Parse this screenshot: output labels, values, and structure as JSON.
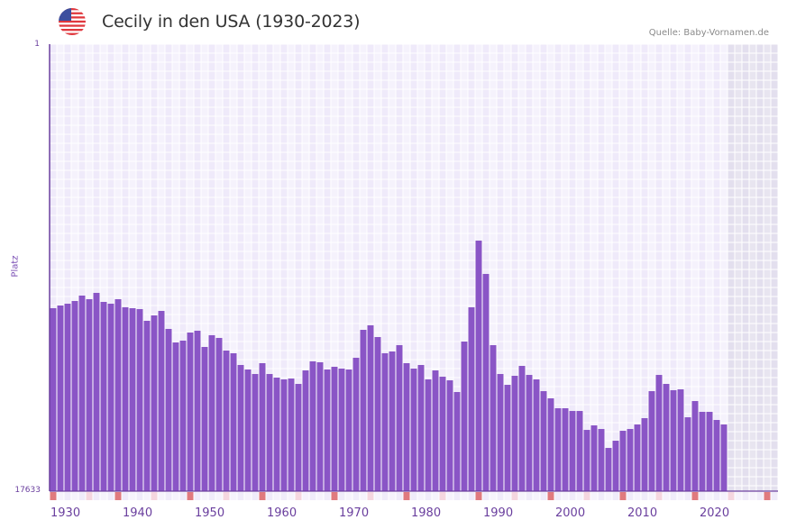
{
  "header": {
    "flag_icon": "us-flag-icon",
    "title": "Cecily in den USA (1930-2023)",
    "source": "Quelle: Baby-Vornamen.de"
  },
  "colors": {
    "bar": "#8a55c6",
    "axis": "#6a3f9e",
    "grid_a": "#efeafa",
    "grid_b": "#f5f2fc",
    "future_a": "#e3dfee",
    "future_b": "#e8e5f0",
    "decade_marker": "#e07a7e",
    "mid_marker": "#f5d6df"
  },
  "chart_data": {
    "type": "bar",
    "title": "Cecily in den USA (1930-2023)",
    "xlabel": "",
    "ylabel": "Platz",
    "ylim": [
      17633,
      1
    ],
    "y_tick_labels": [
      "1",
      "17633"
    ],
    "x_range": [
      1930,
      2030
    ],
    "x_tick_labels": [
      "1930",
      "1940",
      "1950",
      "1960",
      "1970",
      "1980",
      "1990",
      "2000",
      "2010",
      "2020"
    ],
    "grid": true,
    "legend": "none",
    "years": [
      1930,
      1931,
      1932,
      1933,
      1934,
      1935,
      1936,
      1937,
      1938,
      1939,
      1940,
      1941,
      1942,
      1943,
      1944,
      1945,
      1946,
      1947,
      1948,
      1949,
      1950,
      1951,
      1952,
      1953,
      1954,
      1955,
      1956,
      1957,
      1958,
      1959,
      1960,
      1961,
      1962,
      1963,
      1964,
      1965,
      1966,
      1967,
      1968,
      1969,
      1970,
      1971,
      1972,
      1973,
      1974,
      1975,
      1976,
      1977,
      1978,
      1979,
      1980,
      1981,
      1982,
      1983,
      1984,
      1985,
      1986,
      1987,
      1988,
      1989,
      1990,
      1991,
      1992,
      1993,
      1994,
      1995,
      1996,
      1997,
      1998,
      1999,
      2000,
      2001,
      2002,
      2003,
      2004,
      2005,
      2006,
      2007,
      2008,
      2009,
      2010,
      2011,
      2012,
      2013,
      2014,
      2015,
      2016,
      2017,
      2018,
      2019,
      2020,
      2021,
      2022,
      2023
    ],
    "ranks": [
      10417,
      10310,
      10239,
      10132,
      9919,
      10061,
      9812,
      10168,
      10239,
      10061,
      10381,
      10417,
      10452,
      10914,
      10701,
      10523,
      11234,
      11767,
      11696,
      11376,
      11305,
      11945,
      11483,
      11589,
      12087,
      12194,
      12656,
      12834,
      13012,
      12585,
      13012,
      13154,
      13225,
      13190,
      13403,
      12870,
      12514,
      12549,
      12834,
      12727,
      12798,
      12834,
      12372,
      11270,
      11092,
      11554,
      12194,
      12123,
      11874,
      12585,
      12798,
      12656,
      13225,
      12870,
      13119,
      13261,
      13723,
      11732,
      10381,
      7750,
      9065,
      11874,
      13012,
      13439,
      13083,
      12692,
      13048,
      13225,
      13688,
      13972,
      14363,
      14363,
      14470,
      14470,
      15217,
      15039,
      15181,
      15928,
      15643,
      15252,
      15181,
      15003,
      14754,
      13688,
      13048,
      13403,
      13652,
      13617,
      14719,
      14079,
      14505,
      14505,
      14825,
      15003
    ]
  },
  "x_axis_markers": {
    "decade_years": [
      1930,
      1939,
      1949,
      1959,
      1969,
      1979,
      1989,
      1999,
      2009,
      2019,
      2029
    ],
    "mid_years": [
      1935,
      1944,
      1954,
      1964,
      1974,
      1984,
      1994,
      2004,
      2014,
      2024
    ]
  }
}
